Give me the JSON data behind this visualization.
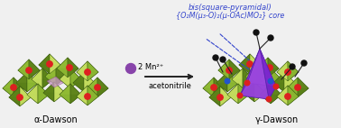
{
  "title_line1": "bis(square-pyramidal)",
  "title_line2": "{O₂M(μ₃-O)₂(μ-OAc)MO₂} core",
  "label_left": "α-Dawson",
  "label_right": "γ-Dawson",
  "reagent_line1": "2 Mn²⁺",
  "reagent_line2": "acetonitrile",
  "title_color": "#3344cc",
  "label_color": "#000000",
  "reagent_color": "#000000",
  "arrow_color": "#222222",
  "sphere_color": "#8844aa",
  "bg_color": "#f0f0f0",
  "figsize": [
    3.78,
    1.42
  ],
  "dpi": 100,
  "green_light": "#c8e060",
  "green_mid": "#8db832",
  "green_dark": "#5a8018",
  "edge_color": "#3a5c10",
  "red_oxy": "#dd2020",
  "purple_face": "#8833cc",
  "blue_stick": "#2244bb"
}
